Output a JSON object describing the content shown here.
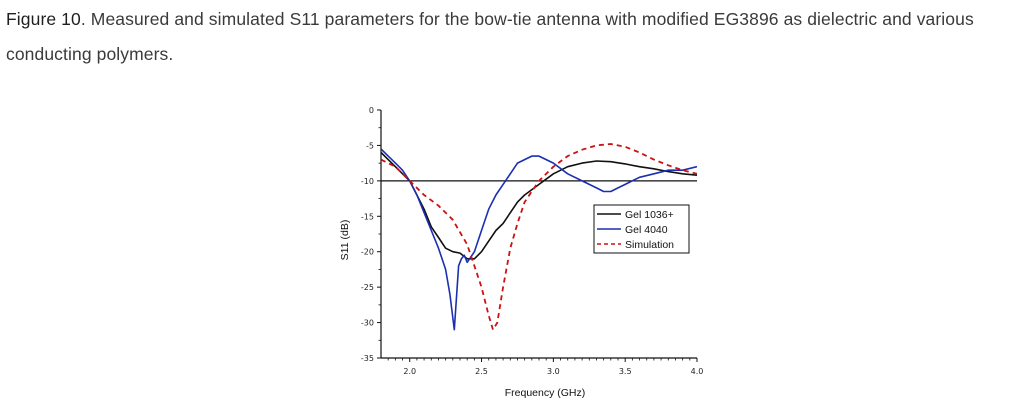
{
  "caption": {
    "label": "Figure 10",
    "text": ". Measured and simulated S11 parameters for the bow-tie antenna with modified EG3896 as dielectric and various conducting polymers."
  },
  "chart_data": {
    "type": "line",
    "title": "",
    "xlabel": "Frequency (GHz)",
    "ylabel": "S11 (dB)",
    "xlim": [
      1.8,
      4.0
    ],
    "ylim": [
      -35,
      0
    ],
    "xticks": [
      2.0,
      2.5,
      3.0,
      3.5,
      4.0
    ],
    "xtick_labels": [
      "2.0",
      "2.5",
      "3.0",
      "3.5",
      "4.0"
    ],
    "yticks": [
      0,
      -5,
      -10,
      -15,
      -20,
      -25,
      -30,
      -35
    ],
    "ytick_labels": [
      "0",
      "-5",
      "-10",
      "-15",
      "-20",
      "-25",
      "-30",
      "-35"
    ],
    "reference_line": {
      "y": -10
    },
    "legend_position": "right",
    "series": [
      {
        "name": "Gel 1036+",
        "color": "#111111",
        "dash": "solid",
        "x": [
          1.8,
          1.9,
          2.0,
          2.05,
          2.1,
          2.15,
          2.2,
          2.25,
          2.3,
          2.35,
          2.4,
          2.45,
          2.5,
          2.55,
          2.6,
          2.65,
          2.7,
          2.75,
          2.8,
          2.9,
          3.0,
          3.1,
          3.2,
          3.3,
          3.4,
          3.5,
          3.6,
          3.7,
          3.8,
          3.9,
          4.0
        ],
        "y": [
          -6,
          -8,
          -10,
          -12,
          -14,
          -16.5,
          -18,
          -19.5,
          -20,
          -20.2,
          -21,
          -21,
          -20,
          -18.5,
          -17,
          -16,
          -14.5,
          -13,
          -12,
          -10.5,
          -9,
          -8,
          -7.5,
          -7.2,
          -7.3,
          -7.6,
          -8,
          -8.3,
          -8.7,
          -9,
          -9.2
        ]
      },
      {
        "name": "Gel 4040",
        "color": "#1c2fb0",
        "dash": "solid",
        "x": [
          1.8,
          1.85,
          1.9,
          1.95,
          2.0,
          2.05,
          2.1,
          2.15,
          2.2,
          2.25,
          2.28,
          2.31,
          2.34,
          2.36,
          2.38,
          2.4,
          2.45,
          2.5,
          2.55,
          2.6,
          2.65,
          2.7,
          2.75,
          2.8,
          2.85,
          2.9,
          3.0,
          3.1,
          3.2,
          3.3,
          3.35,
          3.4,
          3.45,
          3.5,
          3.6,
          3.7,
          3.8,
          3.9,
          4.0
        ],
        "y": [
          -5.5,
          -6.5,
          -7.5,
          -8.5,
          -10,
          -12,
          -14.5,
          -17,
          -19.5,
          -22.5,
          -26,
          -31,
          -22,
          -21,
          -20.5,
          -21.5,
          -20,
          -17,
          -14,
          -12,
          -10.5,
          -9,
          -7.5,
          -7,
          -6.5,
          -6.5,
          -7.5,
          -9,
          -10,
          -11,
          -11.5,
          -11.5,
          -11,
          -10.5,
          -9.5,
          -9,
          -8.5,
          -8.5,
          -8
        ]
      },
      {
        "name": "Simulation",
        "color": "#cc1111",
        "dash": "dashed",
        "x": [
          1.8,
          1.9,
          2.0,
          2.1,
          2.2,
          2.3,
          2.4,
          2.45,
          2.5,
          2.55,
          2.58,
          2.61,
          2.65,
          2.7,
          2.75,
          2.8,
          2.85,
          2.9,
          3.0,
          3.1,
          3.2,
          3.3,
          3.4,
          3.5,
          3.6,
          3.7,
          3.8,
          3.9,
          4.0
        ],
        "y": [
          -7,
          -8,
          -10,
          -12,
          -13.5,
          -15.5,
          -19,
          -22,
          -25,
          -29,
          -31,
          -30,
          -25,
          -19.5,
          -16,
          -13,
          -11.5,
          -10,
          -8,
          -6.5,
          -5.6,
          -5,
          -4.8,
          -5.2,
          -6,
          -7,
          -7.8,
          -8.5,
          -9
        ]
      }
    ]
  }
}
